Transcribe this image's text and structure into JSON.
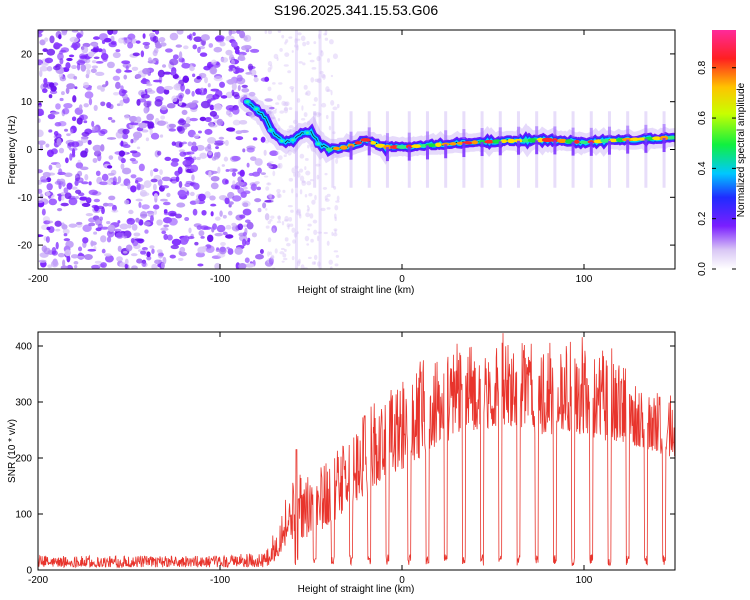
{
  "title": "S196.2025.341.15.53.G06",
  "colors": {
    "snr_line": "#e8342c",
    "axis": "#000000",
    "ridge": "#1a1a1a"
  },
  "chart_data": [
    {
      "type": "heatmap",
      "name": "spectrogram",
      "xlabel": "Height of straight line (km)",
      "ylabel": "Frequency (Hz)",
      "xlim": [
        -200,
        150
      ],
      "ylim": [
        -25,
        25
      ],
      "x_ticks": [
        -200,
        -100,
        0,
        100
      ],
      "y_ticks": [
        -20,
        -10,
        0,
        10,
        20
      ],
      "ridge": {
        "x": [
          -85,
          -80,
          -75,
          -70,
          -65,
          -60,
          -55,
          -50,
          -45,
          -40,
          -30,
          -20,
          -10,
          0,
          20,
          40,
          60,
          80,
          100,
          120,
          150
        ],
        "freq": [
          10,
          8.5,
          6.5,
          3,
          1.5,
          2,
          3.5,
          3.5,
          1,
          0,
          0.5,
          2,
          0.5,
          0.5,
          1,
          1.5,
          1.8,
          2,
          1.5,
          2,
          2.5
        ]
      },
      "colorbar": {
        "label": "Normalized spectral amplitude",
        "range": [
          0,
          0.95
        ],
        "ticks": [
          0.0,
          0.2,
          0.4,
          0.6,
          0.8
        ],
        "tick_labels": [
          "0.0",
          "0.2",
          "0.4",
          "0.6",
          "0.8"
        ]
      }
    },
    {
      "type": "line",
      "name": "snr",
      "xlabel": "Height of straight line (km)",
      "ylabel": "SNR (10 * v/v)",
      "xlim": [
        -200,
        150
      ],
      "ylim": [
        0,
        425
      ],
      "x_ticks": [
        -200,
        -100,
        0,
        100
      ],
      "y_ticks": [
        0,
        100,
        200,
        300,
        400
      ],
      "envelope": {
        "x": [
          -200,
          -150,
          -100,
          -75,
          -70,
          -65,
          -60,
          -50,
          -40,
          -30,
          -20,
          -10,
          0,
          10,
          20,
          30,
          40,
          50,
          60,
          70,
          80,
          90,
          100,
          110,
          120,
          130,
          140,
          150
        ],
        "low": [
          5,
          5,
          5,
          5,
          15,
          40,
          55,
          60,
          80,
          110,
          130,
          160,
          180,
          200,
          220,
          240,
          250,
          255,
          255,
          245,
          240,
          245,
          240,
          230,
          230,
          220,
          210,
          200
        ],
        "high": [
          25,
          25,
          25,
          30,
          70,
          130,
          160,
          170,
          200,
          230,
          280,
          320,
          340,
          360,
          380,
          395,
          400,
          410,
          415,
          400,
          390,
          395,
          400,
          395,
          370,
          350,
          330,
          320
        ]
      },
      "dips_x": [
        -58,
        -48,
        -38,
        -28,
        -18,
        -8,
        4,
        14,
        24,
        34,
        44,
        54,
        64,
        74,
        84,
        94,
        104,
        114,
        124,
        134,
        144
      ],
      "spike_x": -58,
      "spike_value": 215
    }
  ]
}
